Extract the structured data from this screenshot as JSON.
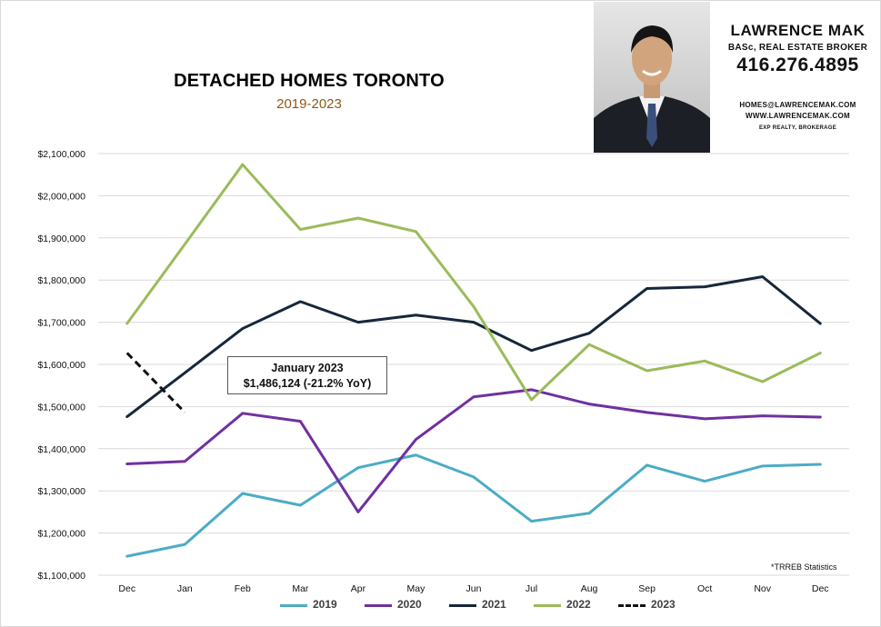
{
  "header": {
    "title": "DETACHED HOMES TORONTO",
    "subtitle": "2019-2023"
  },
  "agent": {
    "name": "LAWRENCE MAK",
    "credentials": "BASc, REAL ESTATE BROKER",
    "phone": "416.276.4895",
    "email": "HOMES@LAWRENCEMAK.COM",
    "website": "WWW.LAWRENCEMAK.COM",
    "brokerage": "EXP REALTY, BROKERAGE"
  },
  "annotation": {
    "line1": "January 2023",
    "line2": "$1,486,124  (-21.2%  YoY)"
  },
  "source_note": "*TRREB Statistics",
  "chart_data": {
    "type": "line",
    "categories": [
      "Dec",
      "Jan",
      "Feb",
      "Mar",
      "Apr",
      "May",
      "Jun",
      "Jul",
      "Aug",
      "Sep",
      "Oct",
      "Nov",
      "Dec"
    ],
    "ylim": [
      1100000,
      2100000
    ],
    "yticks": [
      1100000,
      1200000,
      1300000,
      1400000,
      1500000,
      1600000,
      1700000,
      1800000,
      1900000,
      2000000,
      2100000
    ],
    "ytick_labels": [
      "$1,100,000",
      "$1,200,000",
      "$1,300,000",
      "$1,400,000",
      "$1,500,000",
      "$1,600,000",
      "$1,700,000",
      "$1,800,000",
      "$1,900,000",
      "$2,000,000",
      "$2,100,000"
    ],
    "grid": true,
    "legend_position": "bottom",
    "series": [
      {
        "name": "2019",
        "color": "#4bacc6",
        "dashed": false,
        "values": [
          1145000,
          1173000,
          1294000,
          1266000,
          1355000,
          1385000,
          1333000,
          1228000,
          1247000,
          1361000,
          1323000,
          1359000,
          1363000
        ]
      },
      {
        "name": "2020",
        "color": "#7030a0",
        "dashed": false,
        "values": [
          1364000,
          1370000,
          1484000,
          1465000,
          1250000,
          1422000,
          1523000,
          1540000,
          1506000,
          1486000,
          1471000,
          1478000,
          1475000
        ]
      },
      {
        "name": "2021",
        "color": "#17263a",
        "dashed": false,
        "values": [
          1476000,
          1580000,
          1685000,
          1749000,
          1700000,
          1717000,
          1700000,
          1633000,
          1674000,
          1780000,
          1784000,
          1808000,
          1697000
        ]
      },
      {
        "name": "2022",
        "color": "#9bbb59",
        "dashed": false,
        "values": [
          1697000,
          1885000,
          2074000,
          1920000,
          1947000,
          1915000,
          1737000,
          1516000,
          1647000,
          1585000,
          1608000,
          1559000,
          1627000
        ]
      },
      {
        "name": "2023",
        "color": "#111111",
        "dashed": true,
        "values": [
          1627000,
          1486124,
          null,
          null,
          null,
          null,
          null,
          null,
          null,
          null,
          null,
          null,
          null
        ]
      }
    ]
  }
}
